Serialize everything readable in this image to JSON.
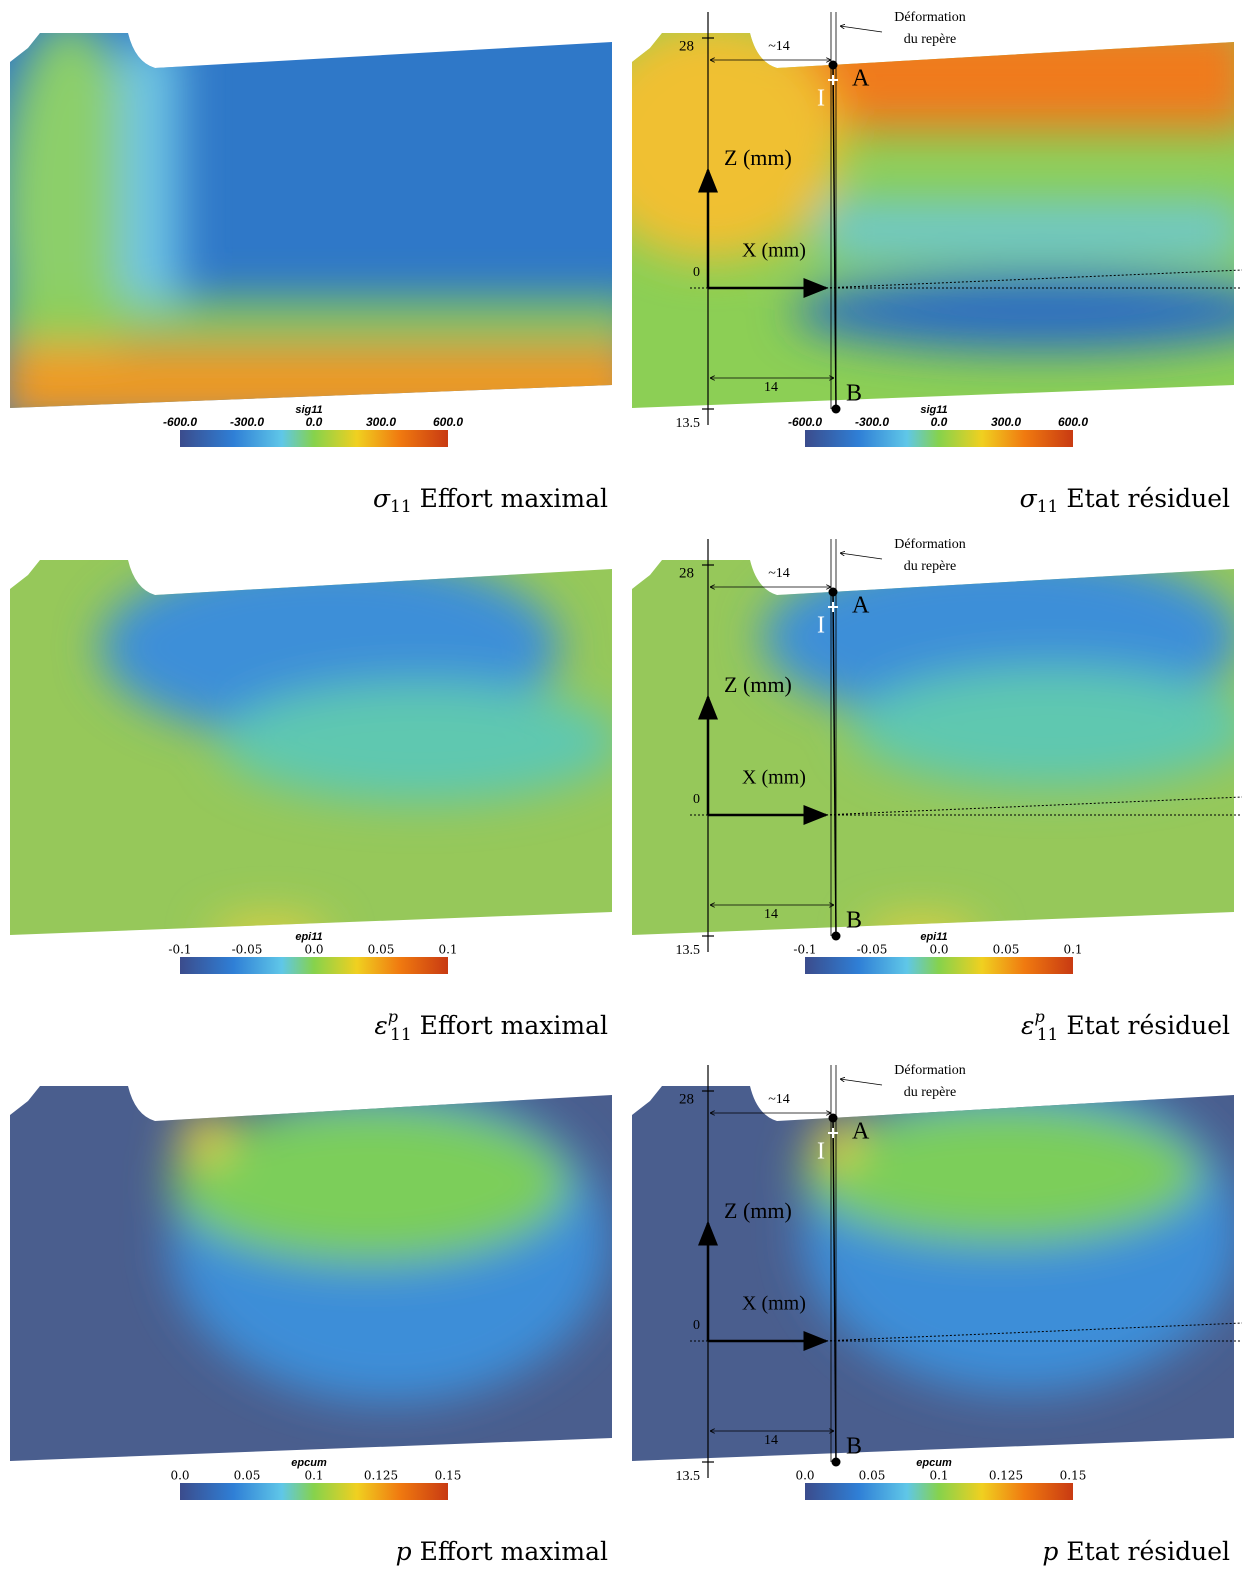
{
  "panels": [
    {
      "field": "sig11",
      "colorbar_ticks": [
        "-600.0",
        "-300.0",
        "0.0",
        "300.0",
        "600.0"
      ],
      "caption": {
        "symbol": "σ",
        "subscript": "11",
        "text": "Effort maximal"
      }
    },
    {
      "field": "sig11",
      "colorbar_ticks": [
        "-600.0",
        "-300.0",
        "0.0",
        "300.0",
        "600.0"
      ],
      "caption": {
        "symbol": "σ",
        "subscript": "11",
        "text": "Etat résiduel"
      }
    },
    {
      "field": "epi11",
      "colorbar_ticks": [
        "-0.1",
        "-0.05",
        "0.0",
        "0.05",
        "0.1"
      ],
      "caption": {
        "symbol": "ε",
        "superscript": "p",
        "subscript": "11",
        "text": "Effort maximal"
      }
    },
    {
      "field": "epi11",
      "colorbar_ticks": [
        "-0.1",
        "-0.05",
        "0.0",
        "0.05",
        "0.1"
      ],
      "caption": {
        "symbol": "ε",
        "superscript": "p",
        "subscript": "11",
        "text": "Etat résiduel"
      }
    },
    {
      "field": "epcum",
      "colorbar_ticks": [
        "0.0",
        "0.05",
        "0.1",
        "0.125",
        "0.15"
      ],
      "caption": {
        "symbol": "p",
        "text": "Effort maximal"
      }
    },
    {
      "field": "epcum",
      "colorbar_ticks": [
        "0.0",
        "0.05",
        "0.1",
        "0.125",
        "0.15"
      ],
      "caption": {
        "symbol": "p",
        "text": "Etat résiduel"
      }
    }
  ],
  "annotations": {
    "deformation": [
      "Déformation",
      "du repère"
    ],
    "z_top": "28",
    "z_bottom": "13.5",
    "origin": "0",
    "x_offset_top": "~14",
    "x_offset_bottom": "14",
    "point_a": "A",
    "point_b": "B",
    "point_i": "I",
    "z_axis": "Z (mm)",
    "x_axis": "X (mm)"
  }
}
